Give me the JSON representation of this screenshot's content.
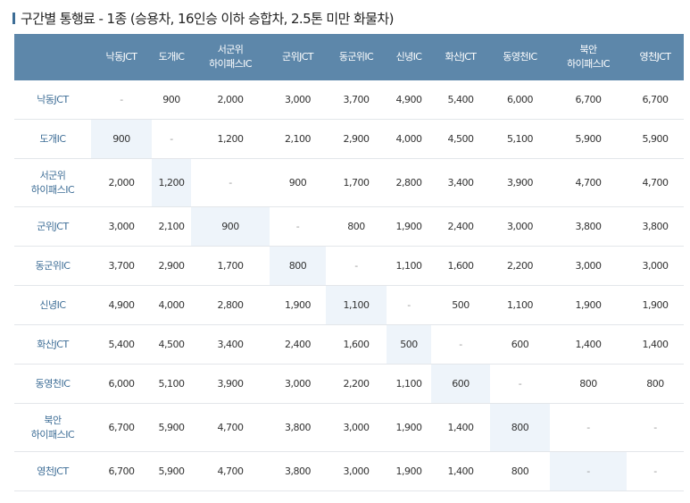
{
  "title": "구간별 통행료 - 1종 (승용차, 16인승 이하 승합차, 2.5톤 미만 화물차)",
  "table": {
    "corner": "",
    "columns": [
      "낙동JCT",
      "도개IC",
      "서군위\n하이패스IC",
      "군위JCT",
      "동군위IC",
      "신녕IC",
      "화산JCT",
      "동영천IC",
      "북안\n하이패스IC",
      "영천JCT"
    ],
    "rows": [
      {
        "label": "낙동JCT",
        "cells": [
          "-",
          "900",
          "2,000",
          "3,000",
          "3,700",
          "4,900",
          "5,400",
          "6,000",
          "6,700",
          "6,700"
        ]
      },
      {
        "label": "도개IC",
        "cells": [
          "900",
          "-",
          "1,200",
          "2,100",
          "2,900",
          "4,000",
          "4,500",
          "5,100",
          "5,900",
          "5,900"
        ]
      },
      {
        "label": "서군위\n하이패스IC",
        "cells": [
          "2,000",
          "1,200",
          "-",
          "900",
          "1,700",
          "2,800",
          "3,400",
          "3,900",
          "4,700",
          "4,700"
        ]
      },
      {
        "label": "군위JCT",
        "cells": [
          "3,000",
          "2,100",
          "900",
          "-",
          "800",
          "1,900",
          "2,400",
          "3,000",
          "3,800",
          "3,800"
        ]
      },
      {
        "label": "동군위IC",
        "cells": [
          "3,700",
          "2,900",
          "1,700",
          "800",
          "-",
          "1,100",
          "1,600",
          "2,200",
          "3,000",
          "3,000"
        ]
      },
      {
        "label": "신녕IC",
        "cells": [
          "4,900",
          "4,000",
          "2,800",
          "1,900",
          "1,100",
          "-",
          "500",
          "1,100",
          "1,900",
          "1,900"
        ]
      },
      {
        "label": "화산JCT",
        "cells": [
          "5,400",
          "4,500",
          "3,400",
          "2,400",
          "1,600",
          "500",
          "-",
          "600",
          "1,400",
          "1,400"
        ]
      },
      {
        "label": "동영천IC",
        "cells": [
          "6,000",
          "5,100",
          "3,900",
          "3,000",
          "2,200",
          "1,100",
          "600",
          "-",
          "800",
          "800"
        ]
      },
      {
        "label": "북안\n하이패스IC",
        "cells": [
          "6,700",
          "5,900",
          "4,700",
          "3,800",
          "3,000",
          "1,900",
          "1,400",
          "800",
          "-",
          "-"
        ]
      },
      {
        "label": "영천JCT",
        "cells": [
          "6,700",
          "5,900",
          "4,700",
          "3,800",
          "3,000",
          "1,900",
          "1,400",
          "800",
          "-",
          "-"
        ]
      }
    ]
  },
  "colors": {
    "header_bg": "#5d87aa",
    "shade": "#eef4fa",
    "row_label": "#3d6d96"
  }
}
